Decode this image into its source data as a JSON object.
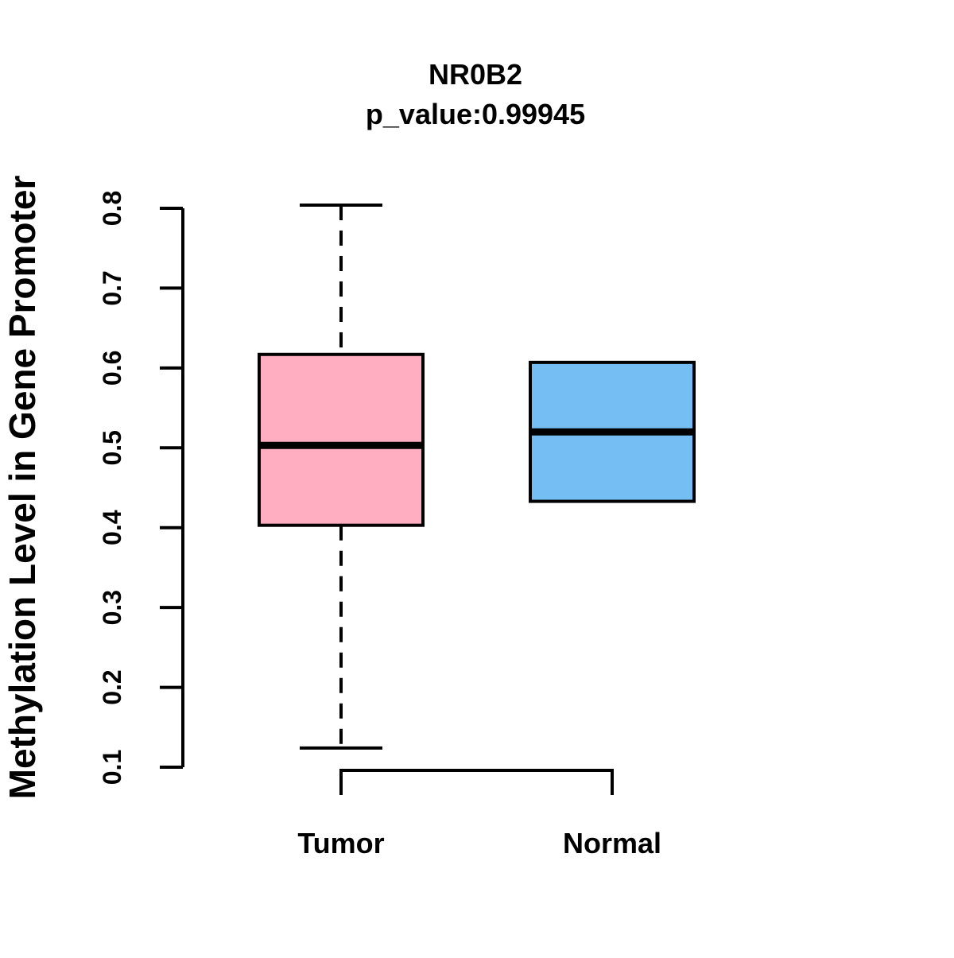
{
  "chart_data": {
    "type": "boxplot",
    "title": "NR0B2",
    "subtitle": "p_value:0.99945",
    "ylabel": "Methylation Level in Gene Promoter",
    "xlabel": "",
    "ylim": [
      0.1,
      0.8
    ],
    "yticks": [
      0.1,
      0.2,
      0.3,
      0.4,
      0.5,
      0.6,
      0.7,
      0.8
    ],
    "grid": false,
    "legend": false,
    "categories": [
      "Tumor",
      "Normal"
    ],
    "series": [
      {
        "name": "Tumor",
        "color": "#FFAEC1",
        "border_color": "#000000",
        "whisker_low": 0.124,
        "q1": 0.403,
        "median": 0.503,
        "q3": 0.617,
        "whisker_high": 0.804
      },
      {
        "name": "Normal",
        "color": "#75BEF4",
        "border_color": "#000000",
        "whisker_low": 0.433,
        "q1": 0.433,
        "median": 0.52,
        "q3": 0.607,
        "whisker_high": 0.607
      }
    ]
  }
}
